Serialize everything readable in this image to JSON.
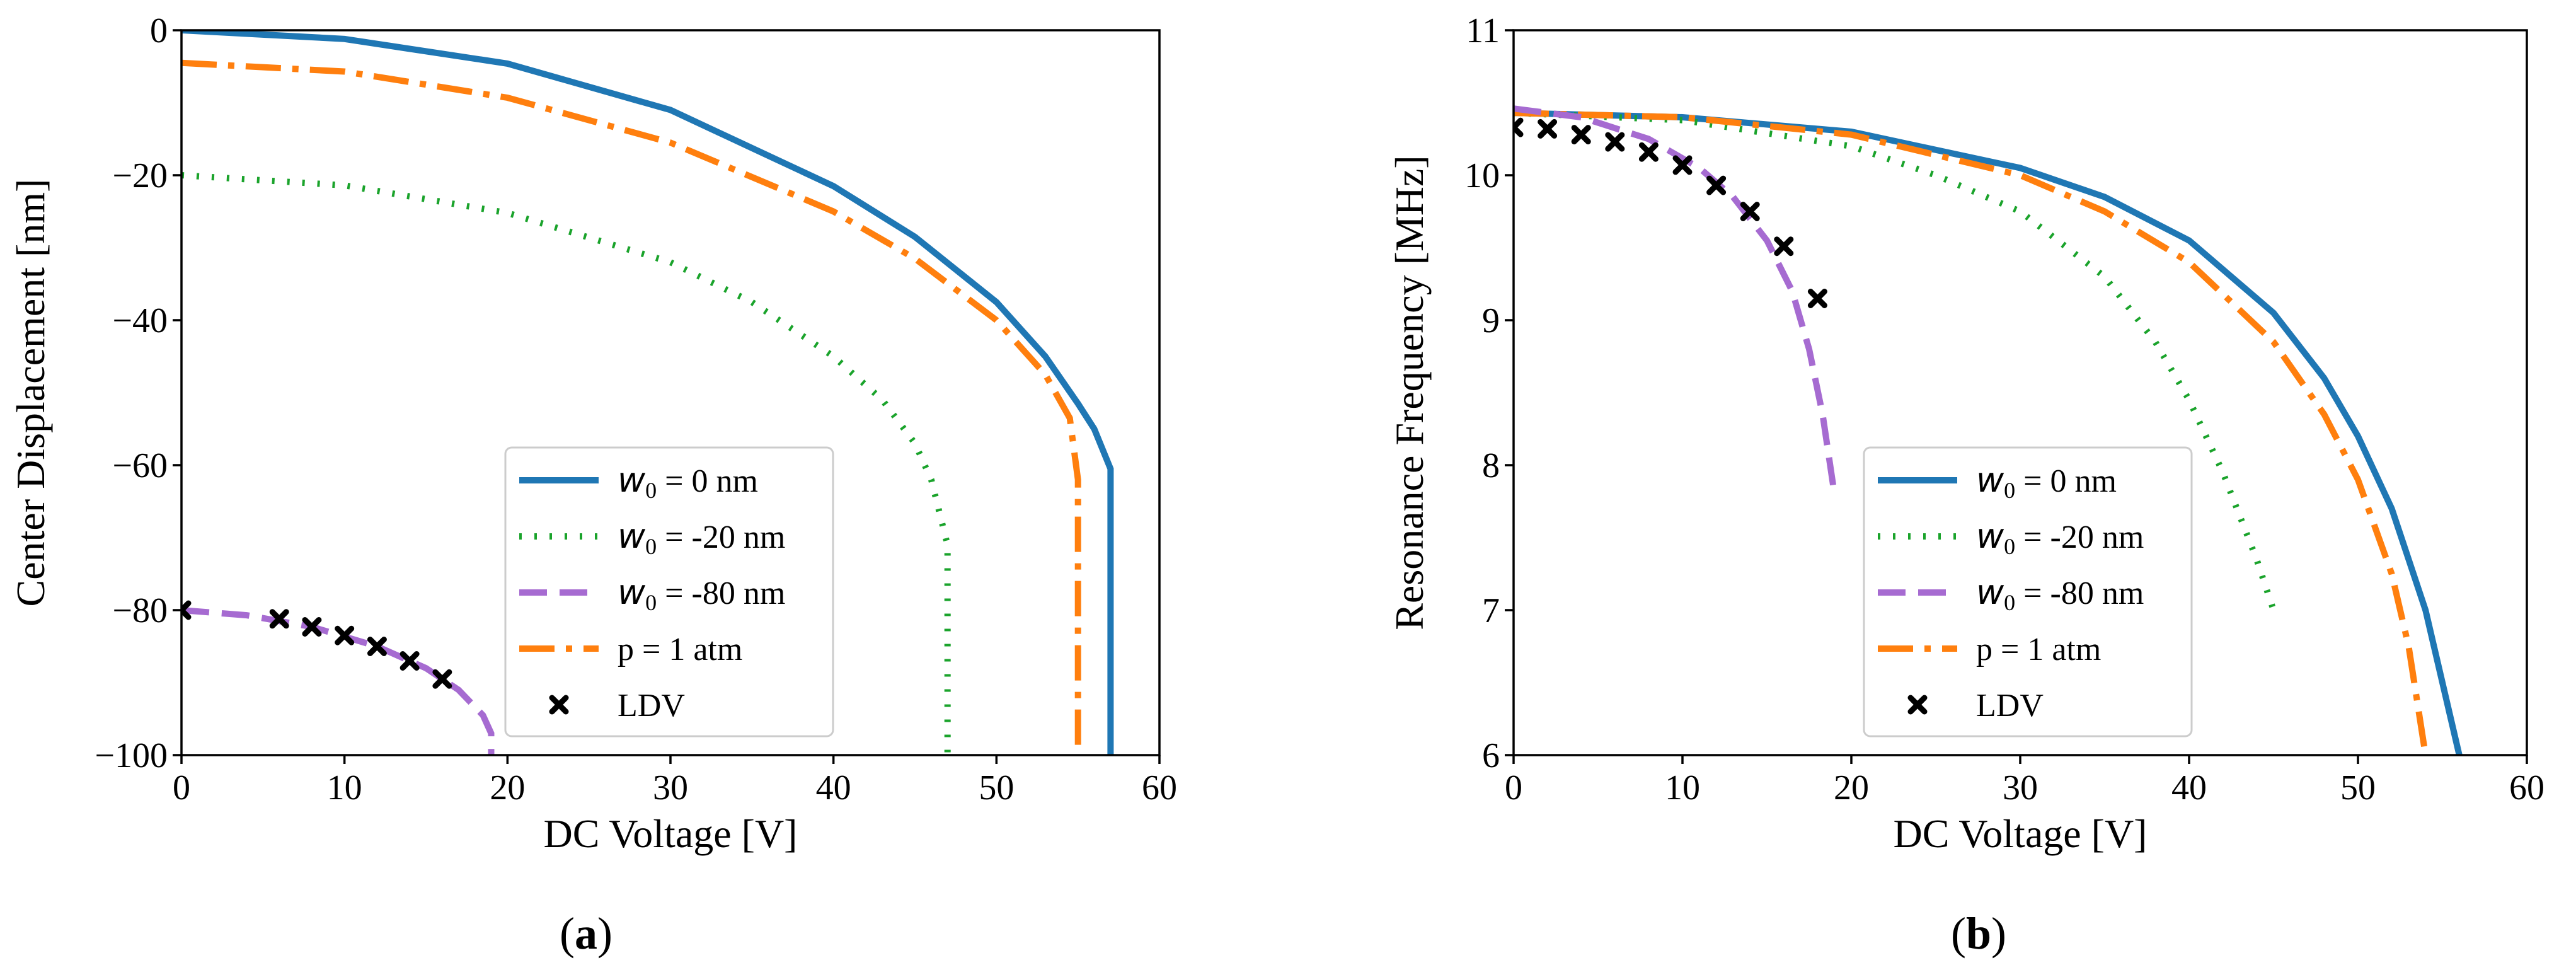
{
  "figure": {
    "panel_labels": [
      {
        "open": "(",
        "letter": "a",
        "close": ")"
      },
      {
        "open": "(",
        "letter": "b",
        "close": ")"
      }
    ]
  },
  "legend": {
    "entries": [
      {
        "prefix_symbol": "w",
        "subscript": "0",
        "suffix": " = 0 nm",
        "style": "solid",
        "color": "#1f77b4"
      },
      {
        "prefix_symbol": "w",
        "subscript": "0",
        "suffix": " = -20 nm",
        "style": "dotted",
        "color": "#1aa32b"
      },
      {
        "prefix_symbol": "w",
        "subscript": "0",
        "suffix": " = -80 nm",
        "style": "dashed",
        "color": "#a66bd1"
      },
      {
        "text": "p = 1 atm",
        "style": "dashdot",
        "color": "#ff7f0e"
      },
      {
        "text": "LDV",
        "style": "marker-x",
        "color": "#000000"
      }
    ]
  },
  "chart_data": [
    {
      "type": "line",
      "title": "",
      "xlabel": "DC Voltage [V]",
      "ylabel": "Center Displacement [nm]",
      "xlim": [
        0,
        60
      ],
      "ylim": [
        -100,
        0
      ],
      "xticks": [
        0,
        10,
        20,
        30,
        40,
        50,
        60
      ],
      "yticks": [
        0,
        -20,
        -40,
        -60,
        -80,
        -100
      ],
      "ytick_labels": [
        "0",
        "−20",
        "−40",
        "−60",
        "−80",
        "−100"
      ],
      "grid": false,
      "legend_position": "bottom-center",
      "series": [
        {
          "name": "w0 = 0 nm",
          "style": "solid",
          "color": "#1f77b4",
          "x": [
            0,
            10,
            20,
            30,
            40,
            45,
            50,
            53,
            55,
            56,
            57,
            57
          ],
          "y": [
            0,
            -1.2,
            -4.6,
            -11,
            -21.5,
            -28.5,
            -37.5,
            -45,
            -51.5,
            -55,
            -60.5,
            -100
          ]
        },
        {
          "name": "w0 = -20 nm",
          "style": "dotted",
          "color": "#1aa32b",
          "x": [
            0,
            10,
            20,
            30,
            35,
            40,
            43,
            45,
            46,
            47,
            47
          ],
          "y": [
            -20,
            -21.4,
            -25.2,
            -32,
            -37.5,
            -45,
            -51,
            -57,
            -62,
            -71,
            -100
          ]
        },
        {
          "name": "p = 1 atm",
          "style": "dashdot",
          "color": "#ff7f0e",
          "x": [
            0,
            10,
            20,
            30,
            40,
            45,
            50,
            53,
            54.5,
            55,
            55
          ],
          "y": [
            -4.5,
            -5.7,
            -9.3,
            -15.5,
            -25,
            -31.5,
            -40,
            -47.5,
            -53.5,
            -62,
            -100
          ]
        },
        {
          "name": "w0 = -80 nm",
          "style": "dashed",
          "color": "#a66bd1",
          "x": [
            0,
            4,
            8,
            12,
            15,
            17,
            18.5,
            19,
            19
          ],
          "y": [
            -80,
            -80.7,
            -82.3,
            -85,
            -88,
            -91,
            -94.5,
            -97,
            -100
          ]
        },
        {
          "name": "LDV",
          "style": "marker-x",
          "color": "#000000",
          "x": [
            0,
            6,
            8,
            10,
            12,
            14,
            16
          ],
          "y": [
            -80,
            -81.2,
            -82.3,
            -83.5,
            -85,
            -87,
            -89.5
          ]
        }
      ]
    },
    {
      "type": "line",
      "title": "",
      "xlabel": "DC Voltage [V]",
      "ylabel": "Resonance Frequency [MHz]",
      "xlim": [
        0,
        60
      ],
      "ylim": [
        6,
        11
      ],
      "xticks": [
        0,
        10,
        20,
        30,
        40,
        50,
        60
      ],
      "yticks": [
        6,
        7,
        8,
        9,
        10,
        11
      ],
      "ytick_labels": [
        "6",
        "7",
        "8",
        "9",
        "10",
        "11"
      ],
      "grid": false,
      "legend_position": "bottom-center",
      "series": [
        {
          "name": "w0 = 0 nm",
          "style": "solid",
          "color": "#1f77b4",
          "x": [
            0,
            10,
            20,
            30,
            35,
            40,
            45,
            48,
            50,
            52,
            54,
            55,
            56
          ],
          "y": [
            10.43,
            10.4,
            10.3,
            10.05,
            9.85,
            9.55,
            9.05,
            8.6,
            8.2,
            7.7,
            7.0,
            6.5,
            6.0
          ]
        },
        {
          "name": "w0 = -20 nm",
          "style": "dotted",
          "color": "#1aa32b",
          "x": [
            0,
            10,
            20,
            25,
            30,
            35,
            38,
            40,
            42,
            44,
            45
          ],
          "y": [
            10.43,
            10.38,
            10.2,
            10.0,
            9.75,
            9.3,
            8.85,
            8.45,
            7.95,
            7.35,
            7.0
          ]
        },
        {
          "name": "p = 1 atm",
          "style": "dashdot",
          "color": "#ff7f0e",
          "x": [
            0,
            10,
            20,
            30,
            35,
            40,
            45,
            48,
            50,
            52,
            53,
            54
          ],
          "y": [
            10.43,
            10.4,
            10.28,
            10.0,
            9.75,
            9.4,
            8.85,
            8.35,
            7.9,
            7.25,
            6.75,
            6.0
          ]
        },
        {
          "name": "w0 = -80 nm",
          "style": "dashed",
          "color": "#a66bd1",
          "x": [
            0,
            4,
            8,
            11,
            13,
            15,
            16.5,
            17.5,
            18.3,
            19
          ],
          "y": [
            10.46,
            10.4,
            10.25,
            10.05,
            9.85,
            9.55,
            9.2,
            8.8,
            8.35,
            7.8
          ]
        },
        {
          "name": "LDV",
          "style": "marker-x",
          "color": "#000000",
          "x": [
            0,
            2,
            4,
            6,
            8,
            10,
            12,
            14,
            16,
            18
          ],
          "y": [
            10.33,
            10.32,
            10.28,
            10.23,
            10.16,
            10.07,
            9.93,
            9.75,
            9.51,
            9.15
          ]
        }
      ]
    }
  ]
}
